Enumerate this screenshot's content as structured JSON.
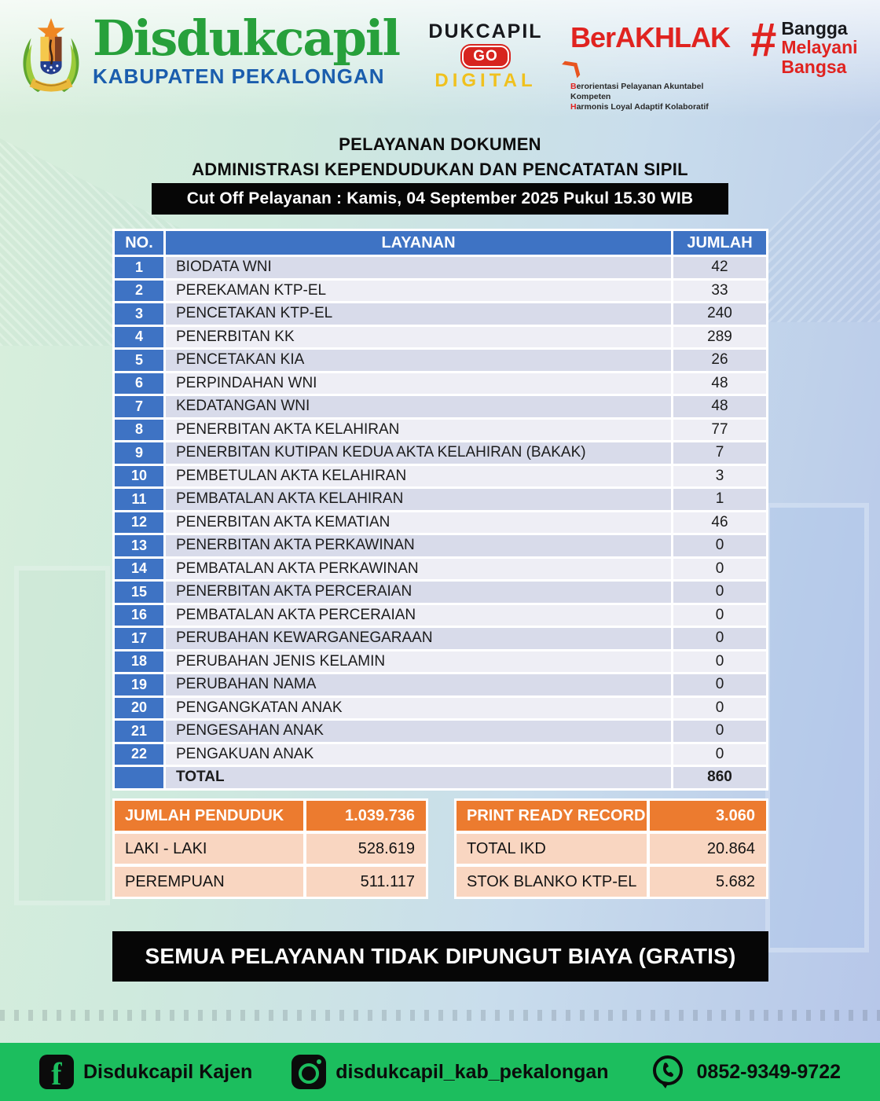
{
  "colors": {
    "accent_blue": "#3e73c4",
    "accent_orange": "#ec7b2f",
    "footer_green": "#1cbe5e",
    "brand_green": "#27a03b",
    "brand_blue": "#1a5dad",
    "logo_red": "#e02320",
    "row_odd": "#d8dbea",
    "row_even": "#eeeef5",
    "summary_row_pink": "#f9d6c1"
  },
  "header": {
    "org_name": "Disdukcapil",
    "org_sub": "KABUPATEN PEKALONGAN",
    "crest_icon": "pekalongan-coat-of-arms",
    "godigital": {
      "line1": "DUKCAPIL",
      "badge": "GO",
      "line2": "DIGITAL"
    },
    "berakhlak": {
      "title": "BerAKHLAK",
      "arrow": "❯",
      "sub1": "Berorientasi Pelayanan Akuntabel Kompeten",
      "sub2": "Harmonis Loyal Adaptif Kolaboratif"
    },
    "bangga": {
      "hash": "#",
      "words": [
        "Bangga",
        "Melayani",
        "Bangsa"
      ]
    }
  },
  "title": {
    "line1": "PELAYANAN DOKUMEN",
    "line2": "ADMINISTRASI KEPENDUDUKAN DAN PENCATATAN SIPIL"
  },
  "cutoff": "Cut Off Pelayanan : Kamis, 04 September 2025 Pukul 15.30 WIB",
  "table": {
    "headers": {
      "no": "NO.",
      "layanan": "LAYANAN",
      "jumlah": "JUMLAH"
    },
    "rows": [
      {
        "no": "1",
        "layanan": "BIODATA WNI",
        "jumlah": "42"
      },
      {
        "no": "2",
        "layanan": "PEREKAMAN KTP-EL",
        "jumlah": "33"
      },
      {
        "no": "3",
        "layanan": "PENCETAKAN KTP-EL",
        "jumlah": "240"
      },
      {
        "no": "4",
        "layanan": "PENERBITAN KK",
        "jumlah": "289"
      },
      {
        "no": "5",
        "layanan": "PENCETAKAN KIA",
        "jumlah": "26"
      },
      {
        "no": "6",
        "layanan": "PERPINDAHAN WNI",
        "jumlah": "48"
      },
      {
        "no": "7",
        "layanan": "KEDATANGAN WNI",
        "jumlah": "48"
      },
      {
        "no": "8",
        "layanan": "PENERBITAN AKTA KELAHIRAN",
        "jumlah": "77"
      },
      {
        "no": "9",
        "layanan": "PENERBITAN KUTIPAN KEDUA AKTA KELAHIRAN (BAKAK)",
        "jumlah": "7"
      },
      {
        "no": "10",
        "layanan": "PEMBETULAN AKTA KELAHIRAN",
        "jumlah": "3"
      },
      {
        "no": "11",
        "layanan": "PEMBATALAN AKTA KELAHIRAN",
        "jumlah": "1"
      },
      {
        "no": "12",
        "layanan": "PENERBITAN AKTA KEMATIAN",
        "jumlah": "46"
      },
      {
        "no": "13",
        "layanan": "PENERBITAN AKTA PERKAWINAN",
        "jumlah": "0"
      },
      {
        "no": "14",
        "layanan": "PEMBATALAN AKTA PERKAWINAN",
        "jumlah": "0"
      },
      {
        "no": "15",
        "layanan": "PENERBITAN AKTA PERCERAIAN",
        "jumlah": "0"
      },
      {
        "no": "16",
        "layanan": "PEMBATALAN AKTA PERCERAIAN",
        "jumlah": "0"
      },
      {
        "no": "17",
        "layanan": "PERUBAHAN KEWARGANEGARAAN",
        "jumlah": "0"
      },
      {
        "no": "18",
        "layanan": "PERUBAHAN JENIS KELAMIN",
        "jumlah": "0"
      },
      {
        "no": "19",
        "layanan": "PERUBAHAN NAMA",
        "jumlah": "0"
      },
      {
        "no": "20",
        "layanan": "PENGANGKATAN ANAK",
        "jumlah": "0"
      },
      {
        "no": "21",
        "layanan": "PENGESAHAN ANAK",
        "jumlah": "0"
      },
      {
        "no": "22",
        "layanan": "PENGAKUAN ANAK",
        "jumlah": "0"
      }
    ],
    "total": {
      "label": "TOTAL",
      "value": "860"
    }
  },
  "summary": {
    "left": {
      "header": {
        "label": "JUMLAH PENDUDUK",
        "value": "1.039.736"
      },
      "rows": [
        {
          "label": "LAKI - LAKI",
          "value": "528.619"
        },
        {
          "label": "PEREMPUAN",
          "value": "511.117"
        }
      ]
    },
    "right": {
      "header": {
        "label": "PRINT READY RECORD",
        "value": "3.060"
      },
      "rows": [
        {
          "label": "TOTAL IKD",
          "value": "20.864"
        },
        {
          "label": "STOK BLANKO KTP-EL",
          "value": "5.682"
        }
      ]
    }
  },
  "banner": "SEMUA PELAYANAN TIDAK DIPUNGUT BIAYA (GRATIS)",
  "footer": {
    "facebook_icon": "facebook-icon",
    "facebook": "Disdukcapil Kajen",
    "instagram_icon": "instagram-icon",
    "instagram": "disdukcapil_kab_pekalongan",
    "phone_icon": "whatsapp-phone-icon",
    "phone": "0852-9349-9722"
  }
}
